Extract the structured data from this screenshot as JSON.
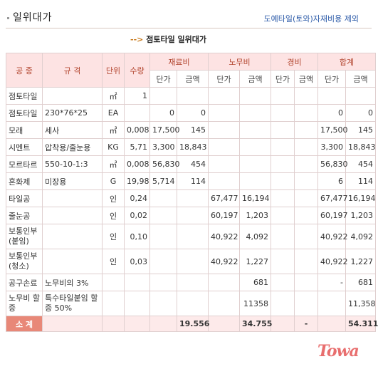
{
  "header": {
    "title": "일위대가",
    "subtitle": "도예타일(토와)자재비용 제외"
  },
  "subhead": {
    "arrow": "-->",
    "text": "점토타일 일위대가"
  },
  "table": {
    "col_headers": {
      "kongjong": "공 종",
      "gyugyeok": "규 격",
      "danwi": "단위",
      "suryang": "수량",
      "jaeryobi": "재료비",
      "nomubi": "노무비",
      "gyeongbi": "경비",
      "hapgye": "합계"
    },
    "sub_headers": [
      "단가",
      "금액",
      "단가",
      "금액",
      "단가",
      "금액",
      "단가",
      "금액"
    ],
    "rows": [
      [
        "점토타일",
        "",
        "㎡",
        "1",
        "",
        "",
        "",
        "",
        "",
        "",
        "",
        ""
      ],
      [
        "점토타일",
        "230*76*25",
        "EA",
        "",
        "0",
        "0",
        "",
        "",
        "",
        "",
        "0",
        "0"
      ],
      [
        "모래",
        "세사",
        "㎥",
        "0,008",
        "17,500",
        "145",
        "",
        "",
        "",
        "",
        "17,500",
        "145"
      ],
      [
        "시멘트",
        "압착용/줄눈용",
        "KG",
        "5,71",
        "3,300",
        "18,843",
        "",
        "",
        "",
        "",
        "3,300",
        "18,843"
      ],
      [
        "모르타르",
        "550-10-1:3",
        "㎥",
        "0,008",
        "56,830",
        "454",
        "",
        "",
        "",
        "",
        "56,830",
        "454"
      ],
      [
        "혼화제",
        "미장용",
        "G",
        "19,98",
        "5,714",
        "114",
        "",
        "",
        "",
        "",
        "6",
        "114"
      ],
      [
        "타일공",
        "",
        "인",
        "0,24",
        "",
        "",
        "67,477",
        "16,194",
        "",
        "",
        "67,477",
        "16,194"
      ],
      [
        "줄눈공",
        "",
        "인",
        "0,02",
        "",
        "",
        "60,197",
        "1,203",
        "",
        "",
        "60,197",
        "1,203"
      ],
      [
        "보통인부(붙임)",
        "",
        "인",
        "0,10",
        "",
        "",
        "40,922",
        "4,092",
        "",
        "",
        "40,922",
        "4,092"
      ],
      [
        "보통인부(청소)",
        "",
        "인",
        "0,03",
        "",
        "",
        "40,922",
        "1,227",
        "",
        "",
        "40,922",
        "1,227"
      ],
      [
        "공구손료",
        "노무비의 3%",
        "",
        "",
        "",
        "",
        "",
        "681",
        "",
        "",
        "-",
        "681"
      ],
      [
        "노무비 할증",
        "특수타일붙임 할증 50%",
        "",
        "",
        "",
        "",
        "",
        "11358",
        "",
        "",
        "",
        "11,358"
      ]
    ],
    "total": {
      "label": "소 계",
      "jaeryo": "19.556",
      "nomu": "34.755",
      "gyeong": "-",
      "hap": "54.311"
    }
  },
  "logo": "Towa"
}
